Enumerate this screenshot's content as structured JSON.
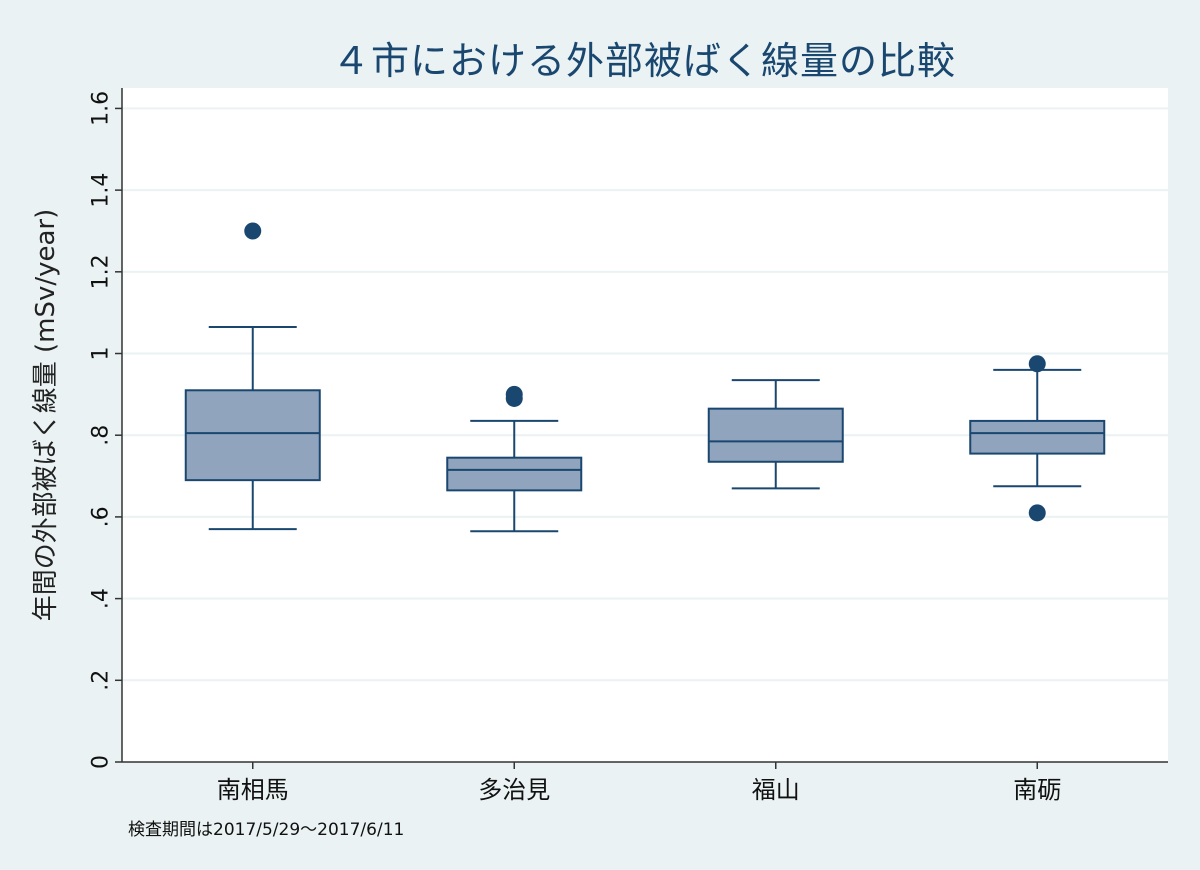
{
  "chart_data": {
    "type": "boxplot",
    "title": "４市における外部被ばく線量の比較",
    "ylabel": "年間の外部被ばく線量 (mSv/year)",
    "xlabel": "",
    "note": "検査期間は2017/5/29〜2017/6/11",
    "ylim": [
      0,
      1.65
    ],
    "yticks": [
      0,
      0.2,
      0.4,
      0.6,
      0.8,
      1.0,
      1.2,
      1.4,
      1.6
    ],
    "ytick_labels": [
      "0",
      ".2",
      ".4",
      ".6",
      ".8",
      "1",
      "1.2",
      "1.4",
      "1.6"
    ],
    "grid": true,
    "categories": [
      "南相馬",
      "多治見",
      "福山",
      "南砺"
    ],
    "boxes": [
      {
        "category": "南相馬",
        "whisker_low": 0.57,
        "q1": 0.69,
        "median": 0.805,
        "q3": 0.91,
        "whisker_high": 1.065,
        "outliers": [
          1.3
        ]
      },
      {
        "category": "多治見",
        "whisker_low": 0.565,
        "q1": 0.665,
        "median": 0.715,
        "q3": 0.745,
        "whisker_high": 0.835,
        "outliers": [
          0.89,
          0.9
        ]
      },
      {
        "category": "福山",
        "whisker_low": 0.67,
        "q1": 0.735,
        "median": 0.785,
        "q3": 0.865,
        "whisker_high": 0.935,
        "outliers": []
      },
      {
        "category": "南砺",
        "whisker_low": 0.675,
        "q1": 0.755,
        "median": 0.805,
        "q3": 0.835,
        "whisker_high": 0.96,
        "outliers": [
          0.61,
          0.975
        ]
      }
    ],
    "colors": {
      "box_fill": "#90a4bd",
      "line": "#1a476f",
      "outlier": "#1a476f",
      "plot_bg": "#ffffff",
      "outer_bg": "#eaf2f3",
      "grid": "#eaf2f3",
      "title": "#1a476f"
    }
  }
}
